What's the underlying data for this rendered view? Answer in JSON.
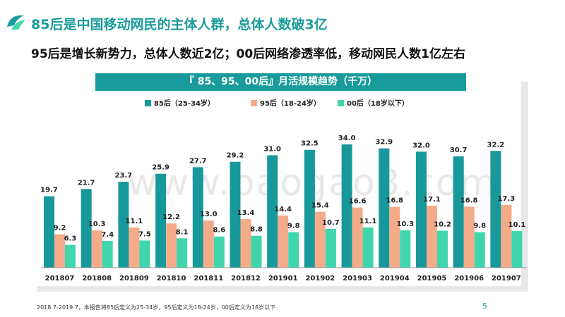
{
  "title": "85后是中国移动网民的主体人群，总体人数破3亿",
  "subtitle": "95后是增长新势力，总体人数近2亿；00后网络渗透率低，移动网民人数1亿左右",
  "footnote": "2018.7-2019.7，本报告将85后定义为25-34岁，95后定义为18-24岁，00后定义为18岁以下",
  "page_number": "5",
  "watermark": "www.baogao8.com",
  "colors": {
    "accent": "#1a9b9b",
    "s85": "#17999b",
    "s95": "#f4ab8a",
    "s00": "#3fd6ad"
  },
  "chart_data": {
    "type": "bar",
    "title": "『 85、95、00后』月活规模趋势（千万）",
    "xlabel": "",
    "ylabel": "",
    "ylim": [
      0,
      40
    ],
    "categories": [
      "201807",
      "201808",
      "201809",
      "201810",
      "201811",
      "201812",
      "201901",
      "201902",
      "201903",
      "201904",
      "201905",
      "201906",
      "201907"
    ],
    "series": [
      {
        "name": "85后（25-34岁）",
        "values": [
          19.7,
          21.7,
          23.7,
          25.9,
          27.7,
          29.2,
          31.0,
          32.5,
          34.0,
          32.9,
          32.0,
          30.7,
          32.2
        ]
      },
      {
        "name": "95后（18-24岁）",
        "values": [
          9.2,
          10.3,
          11.1,
          12.2,
          13.0,
          13.4,
          14.4,
          15.4,
          16.6,
          16.8,
          17.1,
          16.8,
          17.3
        ]
      },
      {
        "name": "00后（18岁以下）",
        "values": [
          6.3,
          7.4,
          7.5,
          8.1,
          8.6,
          8.8,
          9.8,
          10.7,
          11.1,
          10.3,
          10.2,
          9.8,
          10.1
        ]
      }
    ],
    "legend": "top-center"
  }
}
